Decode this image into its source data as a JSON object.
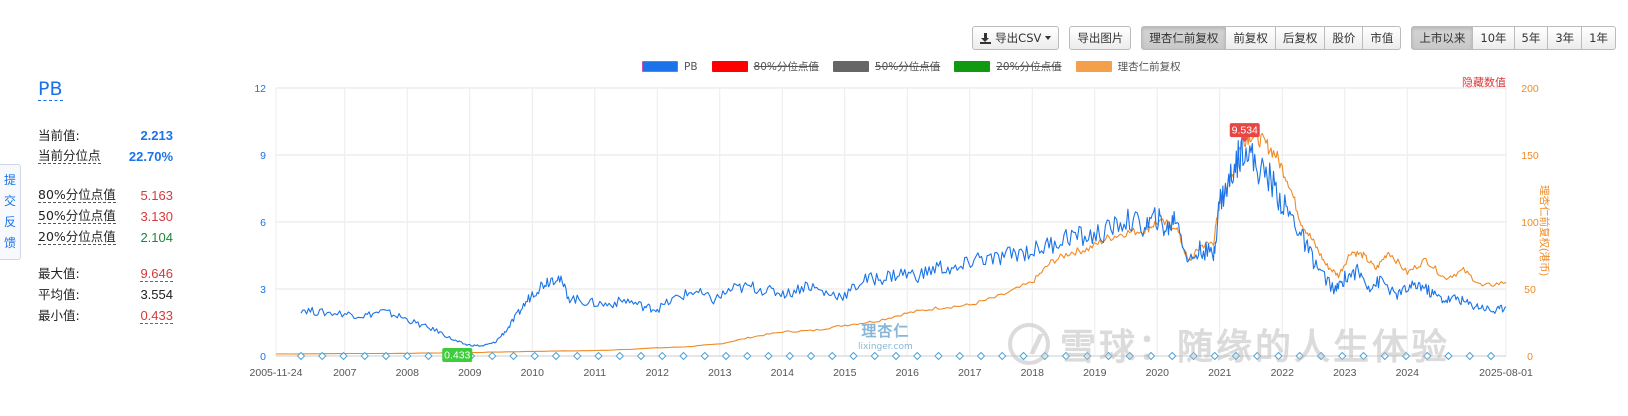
{
  "toolbar": {
    "export_csv": "导出CSV",
    "export_image": "导出图片",
    "adjust_options": [
      "理杏仁前复权",
      "前复权",
      "后复权",
      "股价",
      "市值"
    ],
    "adjust_active": 0,
    "range_options": [
      "上市以来",
      "10年",
      "5年",
      "3年",
      "1年"
    ],
    "range_active": 0
  },
  "metric": {
    "title": "PB",
    "current_label": "当前值:",
    "current_value": "2.213",
    "percentile_label": "当前分位点",
    "percentile_value": "22.70%",
    "p80_label": "80%分位点值",
    "p80_value": "5.163",
    "p50_label": "50%分位点值",
    "p50_value": "3.130",
    "p20_label": "20%分位点值",
    "p20_value": "2.104",
    "max_label": "最大值:",
    "max_value": "9.646",
    "avg_label": "平均值:",
    "avg_value": "3.554",
    "min_label": "最小值:",
    "min_value": "0.433"
  },
  "feedback": {
    "chars": [
      "提",
      "交",
      "反",
      "馈"
    ]
  },
  "hide_data_label": "隐藏数值",
  "watermark": {
    "brand": "理杏仁",
    "site": "lixinger.com",
    "xueqiu": "雪球：随缘的人生体验"
  },
  "colors": {
    "pb": "#1a73e8",
    "p80": "#ff0000",
    "p50": "#666666",
    "p20": "#119911",
    "price": "#f08a24",
    "max_flag": "#e84545",
    "min_flag": "#3ccc3c"
  },
  "chart_data": {
    "type": "line",
    "title": "",
    "legend": [
      {
        "name": "PB",
        "color": "#1a73e8",
        "visible": true
      },
      {
        "name": "80%分位点值",
        "color": "#ff0000",
        "visible": false
      },
      {
        "name": "50%分位点值",
        "color": "#666666",
        "visible": false
      },
      {
        "name": "20%分位点值",
        "color": "#119911",
        "visible": false
      },
      {
        "name": "理杏仁前复权",
        "color": "#f08a24",
        "visible": true
      }
    ],
    "legend_position": "top-center",
    "x_tick_labels": [
      "2005-11-24",
      "2007",
      "2008",
      "2009",
      "2010",
      "2011",
      "2012",
      "2013",
      "2014",
      "2015",
      "2016",
      "2017",
      "2018",
      "2019",
      "2020",
      "2021",
      "2022",
      "2023",
      "2024",
      "2025-08-01"
    ],
    "x_range": [
      2005.9,
      2025.58
    ],
    "y_left": {
      "label": "",
      "ticks": [
        "0",
        "3",
        "6",
        "9",
        "12"
      ],
      "range": [
        0,
        12
      ]
    },
    "y_right": {
      "label": "理杏仁前复权(港币)",
      "ticks": [
        "0",
        "50",
        "100",
        "150",
        "200"
      ],
      "range": [
        0,
        200
      ]
    },
    "grid": true,
    "series": [
      {
        "name": "PB",
        "axis": "left",
        "x": [
          2006.3,
          2006.6,
          2007.0,
          2007.3,
          2007.6,
          2007.9,
          2008.2,
          2008.5,
          2008.75,
          2008.95,
          2009.2,
          2009.4,
          2009.6,
          2009.8,
          2010.0,
          2010.2,
          2010.4,
          2010.6,
          2010.9,
          2011.2,
          2011.5,
          2011.8,
          2012.0,
          2012.3,
          2012.6,
          2012.9,
          2013.2,
          2013.5,
          2013.8,
          2014.1,
          2014.4,
          2014.7,
          2015.0,
          2015.3,
          2015.6,
          2015.9,
          2016.2,
          2016.5,
          2016.8,
          2017.1,
          2017.4,
          2017.7,
          2018.0,
          2018.3,
          2018.6,
          2018.9,
          2019.2,
          2019.5,
          2019.8,
          2020.0,
          2020.15,
          2020.3,
          2020.5,
          2020.7,
          2020.9,
          2021.0,
          2021.1,
          2021.25,
          2021.4,
          2021.6,
          2021.8,
          2022.0,
          2022.2,
          2022.4,
          2022.6,
          2022.85,
          2023.0,
          2023.2,
          2023.4,
          2023.6,
          2023.8,
          2024.0,
          2024.2,
          2024.4,
          2024.6,
          2024.8,
          2025.0,
          2025.2,
          2025.4,
          2025.58
        ],
        "values": [
          2.1,
          1.95,
          1.9,
          1.8,
          2.0,
          1.75,
          1.4,
          1.1,
          0.7,
          0.5,
          0.45,
          0.6,
          1.2,
          2.0,
          2.8,
          3.3,
          3.6,
          2.6,
          2.4,
          2.3,
          2.5,
          2.2,
          2.1,
          2.6,
          2.9,
          2.5,
          3.0,
          3.1,
          2.9,
          2.8,
          3.2,
          2.8,
          2.7,
          3.4,
          3.5,
          3.7,
          3.6,
          4.0,
          3.8,
          4.4,
          4.3,
          4.6,
          4.7,
          5.0,
          5.4,
          5.3,
          5.6,
          6.1,
          5.8,
          6.2,
          5.6,
          6.3,
          4.2,
          4.8,
          4.5,
          7.0,
          7.4,
          8.6,
          9.5,
          8.4,
          8.0,
          6.8,
          6.0,
          4.8,
          3.8,
          2.9,
          3.5,
          3.8,
          3.1,
          3.4,
          2.7,
          3.0,
          3.2,
          2.8,
          2.5,
          2.6,
          2.3,
          2.2,
          2.0,
          2.213
        ]
      },
      {
        "name": "理杏仁前复权",
        "axis": "right",
        "x": [
          2005.9,
          2007.0,
          2008.0,
          2009.0,
          2010.0,
          2011.0,
          2012.0,
          2012.5,
          2013.0,
          2013.5,
          2014.0,
          2014.5,
          2015.0,
          2015.5,
          2016.0,
          2016.5,
          2017.0,
          2017.5,
          2018.0,
          2018.3,
          2018.6,
          2018.9,
          2019.2,
          2019.5,
          2019.8,
          2020.0,
          2020.3,
          2020.5,
          2020.7,
          2020.9,
          2021.0,
          2021.2,
          2021.35,
          2021.5,
          2021.7,
          2021.9,
          2022.1,
          2022.3,
          2022.5,
          2022.7,
          2022.9,
          2023.1,
          2023.3,
          2023.5,
          2023.7,
          2024.0,
          2024.3,
          2024.6,
          2024.9,
          2025.2,
          2025.58
        ],
        "values": [
          1.5,
          1.8,
          2.0,
          2.5,
          3.5,
          4.0,
          6.0,
          7.0,
          9.0,
          14.0,
          18.0,
          19.0,
          23.0,
          26.0,
          32.0,
          36.0,
          38.0,
          45.0,
          55.0,
          70.0,
          77.0,
          80.0,
          88.0,
          92.0,
          94.0,
          100.0,
          97.0,
          70.0,
          82.0,
          85.0,
          115.0,
          135.0,
          160.0,
          165.0,
          160.0,
          150.0,
          130.0,
          100.0,
          85.0,
          68.0,
          60.0,
          78.0,
          75.0,
          65.0,
          78.0,
          62.0,
          72.0,
          58.0,
          64.0,
          52.0,
          55.0
        ]
      }
    ],
    "annotations": [
      {
        "text": "9.646",
        "label_text": "9.534",
        "type": "max",
        "x": 2021.4,
        "y": 9.534
      },
      {
        "text": "0.433",
        "type": "min",
        "x": 2008.8,
        "y": 0.433
      }
    ]
  }
}
